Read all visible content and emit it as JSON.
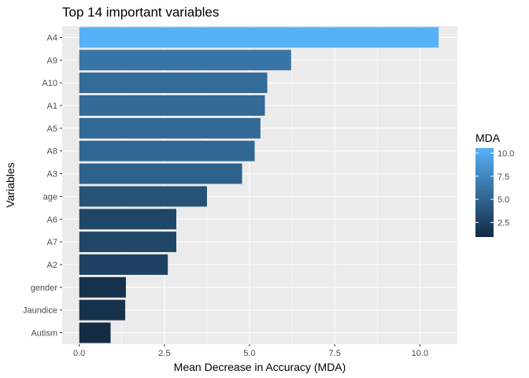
{
  "chart_data": {
    "type": "bar",
    "orientation": "horizontal",
    "title": "Top 14 important variables",
    "xlabel": "Mean Decrease in  Accuracy (MDA)",
    "ylabel": "Variables",
    "categories": [
      "A4",
      "A9",
      "A10",
      "A1",
      "A5",
      "A8",
      "A3",
      "age",
      "A6",
      "A7",
      "A2",
      "gender",
      "Jaundice",
      "Autism"
    ],
    "values": [
      10.55,
      6.22,
      5.52,
      5.45,
      5.32,
      5.15,
      4.78,
      3.75,
      2.85,
      2.85,
      2.6,
      1.37,
      1.35,
      0.92
    ],
    "xlim": [
      -0.5,
      11.1
    ],
    "x_ticks": [
      0.0,
      2.5,
      5.0,
      7.5,
      10.0
    ],
    "x_tick_labels": [
      "0.0",
      "2.5",
      "5.0",
      "7.5",
      "10.0"
    ],
    "grid": true,
    "legend": {
      "title": "MDA",
      "placement": "right",
      "type": "colorbar",
      "range": [
        0.92,
        10.55
      ],
      "ticks": [
        2.5,
        5.0,
        7.5,
        10.0
      ],
      "tick_labels": [
        "2.5",
        "5.0",
        "7.5",
        "10.0"
      ],
      "low_color": "#132B43",
      "high_color": "#56B1F7"
    },
    "panel_background": "#EBEBEB",
    "grid_color": "#FFFFFF"
  }
}
